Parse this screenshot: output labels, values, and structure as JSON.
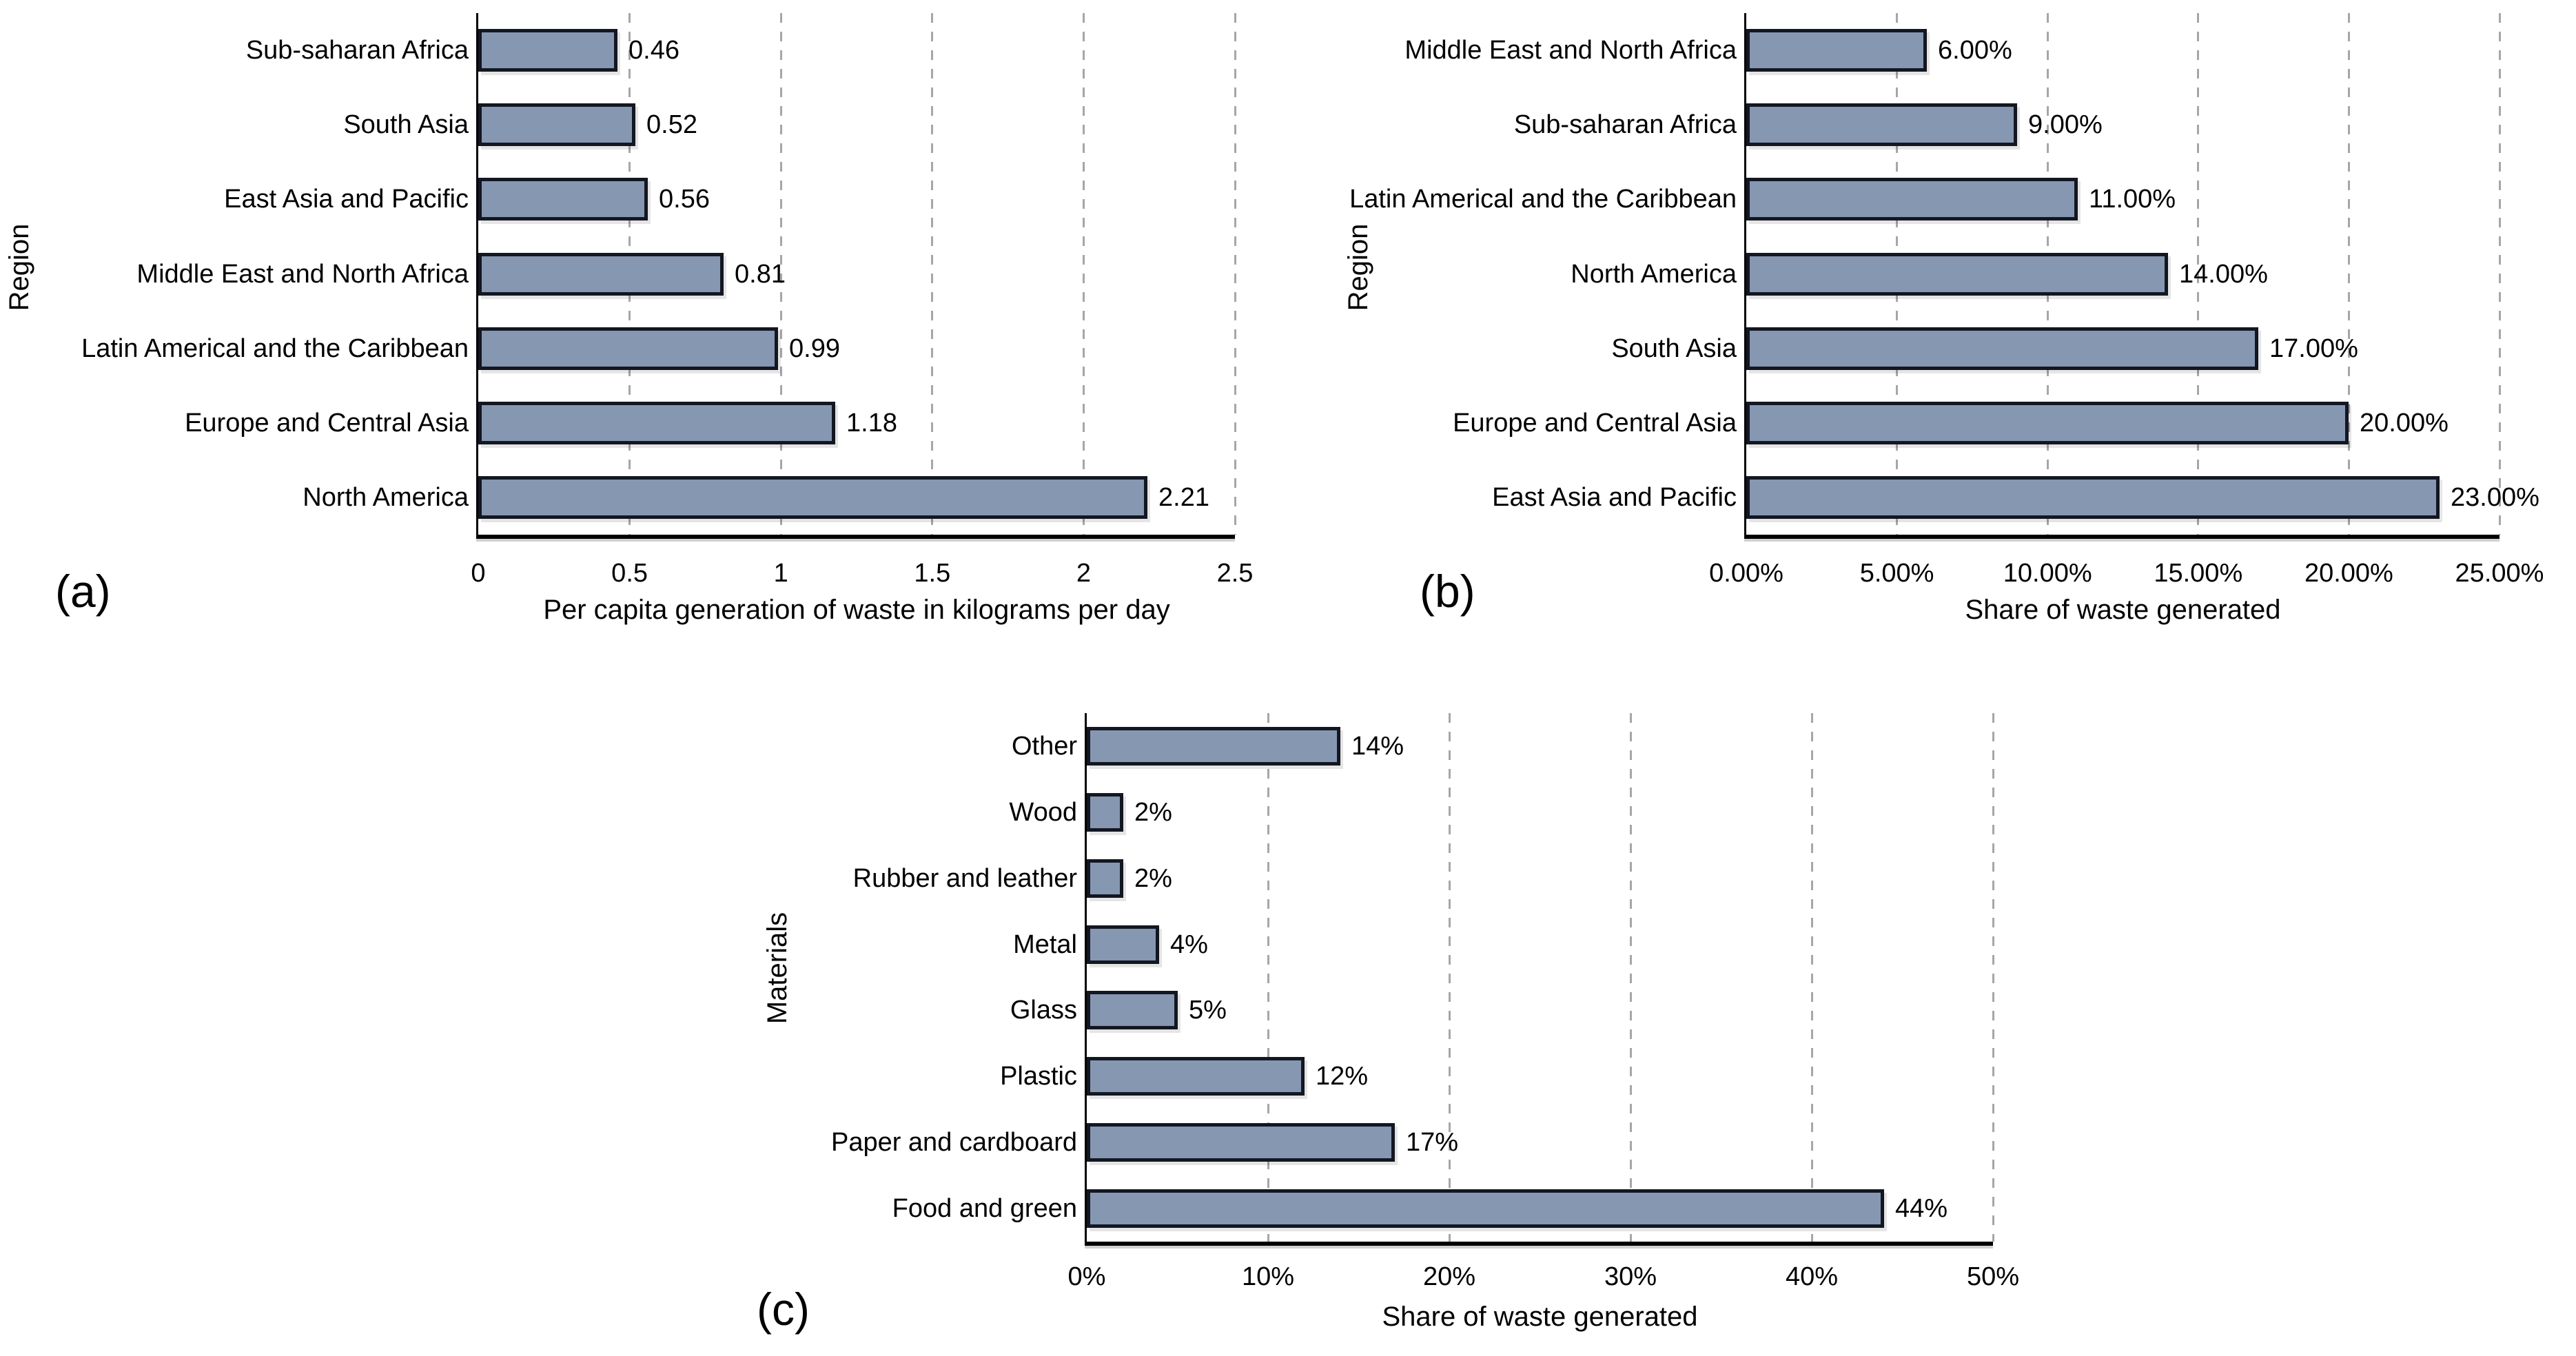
{
  "figure": {
    "background": "#FFFFFF",
    "bar_fill": "#8697B2",
    "bar_border": "#131722",
    "gridline_color": "#A6A6A6",
    "axis_color": "#000000",
    "text_color": "#000000"
  },
  "chart_data": [
    {
      "id": "a",
      "panel_label": "(a)",
      "type": "bar",
      "orientation": "horizontal",
      "title": "",
      "xlabel": "Per capita generation of waste in kilograms per day",
      "ylabel": "Region",
      "categories": [
        "Sub-saharan Africa",
        "South Asia",
        "East Asia and Pacific",
        "Middle East and North Africa",
        "Latin Americal and the Caribbean",
        "Europe and Central Asia",
        "North America"
      ],
      "values": [
        0.46,
        0.52,
        0.56,
        0.81,
        0.99,
        1.18,
        2.21
      ],
      "value_labels": [
        "0.46",
        "0.52",
        "0.56",
        "0.81",
        "0.99",
        "1.18",
        "2.21"
      ],
      "xlim": [
        0,
        2.5
      ],
      "xticks": [
        0,
        0.5,
        1,
        1.5,
        2,
        2.5
      ],
      "xtick_labels": [
        "0",
        "0.5",
        "1",
        "1.5",
        "2",
        "2.5"
      ],
      "grid": true,
      "legend": "none"
    },
    {
      "id": "b",
      "panel_label": "(b)",
      "type": "bar",
      "orientation": "horizontal",
      "title": "",
      "xlabel": "Share of waste generated",
      "ylabel": "Region",
      "categories": [
        "Middle East and North Africa",
        "Sub-saharan Africa",
        "Latin Americal and the Caribbean",
        "North America",
        "South Asia",
        "Europe and Central Asia",
        "East Asia and Pacific"
      ],
      "values": [
        6,
        9,
        11,
        14,
        17,
        20,
        23
      ],
      "value_labels": [
        "6.00%",
        "9.00%",
        "11.00%",
        "14.00%",
        "17.00%",
        "20.00%",
        "23.00%"
      ],
      "xlim": [
        0,
        25
      ],
      "xticks": [
        0,
        5,
        10,
        15,
        20,
        25
      ],
      "xtick_labels": [
        "0.00%",
        "5.00%",
        "10.00%",
        "15.00%",
        "20.00%",
        "25.00%"
      ],
      "grid": true,
      "legend": "none"
    },
    {
      "id": "c",
      "panel_label": "(c)",
      "type": "bar",
      "orientation": "horizontal",
      "title": "",
      "xlabel": "Share of waste generated",
      "ylabel": "Materials",
      "categories": [
        "Other",
        "Wood",
        "Rubber and leather",
        "Metal",
        "Glass",
        "Plastic",
        "Paper and cardboard",
        "Food and green"
      ],
      "values": [
        14,
        2,
        2,
        4,
        5,
        12,
        17,
        44
      ],
      "value_labels": [
        "14%",
        "2%",
        "2%",
        "4%",
        "5%",
        "12%",
        "17%",
        "44%"
      ],
      "xlim": [
        0,
        50
      ],
      "xticks": [
        0,
        10,
        20,
        30,
        40,
        50
      ],
      "xtick_labels": [
        "0%",
        "10%",
        "20%",
        "30%",
        "40%",
        "50%"
      ],
      "grid": true,
      "legend": "none"
    }
  ]
}
